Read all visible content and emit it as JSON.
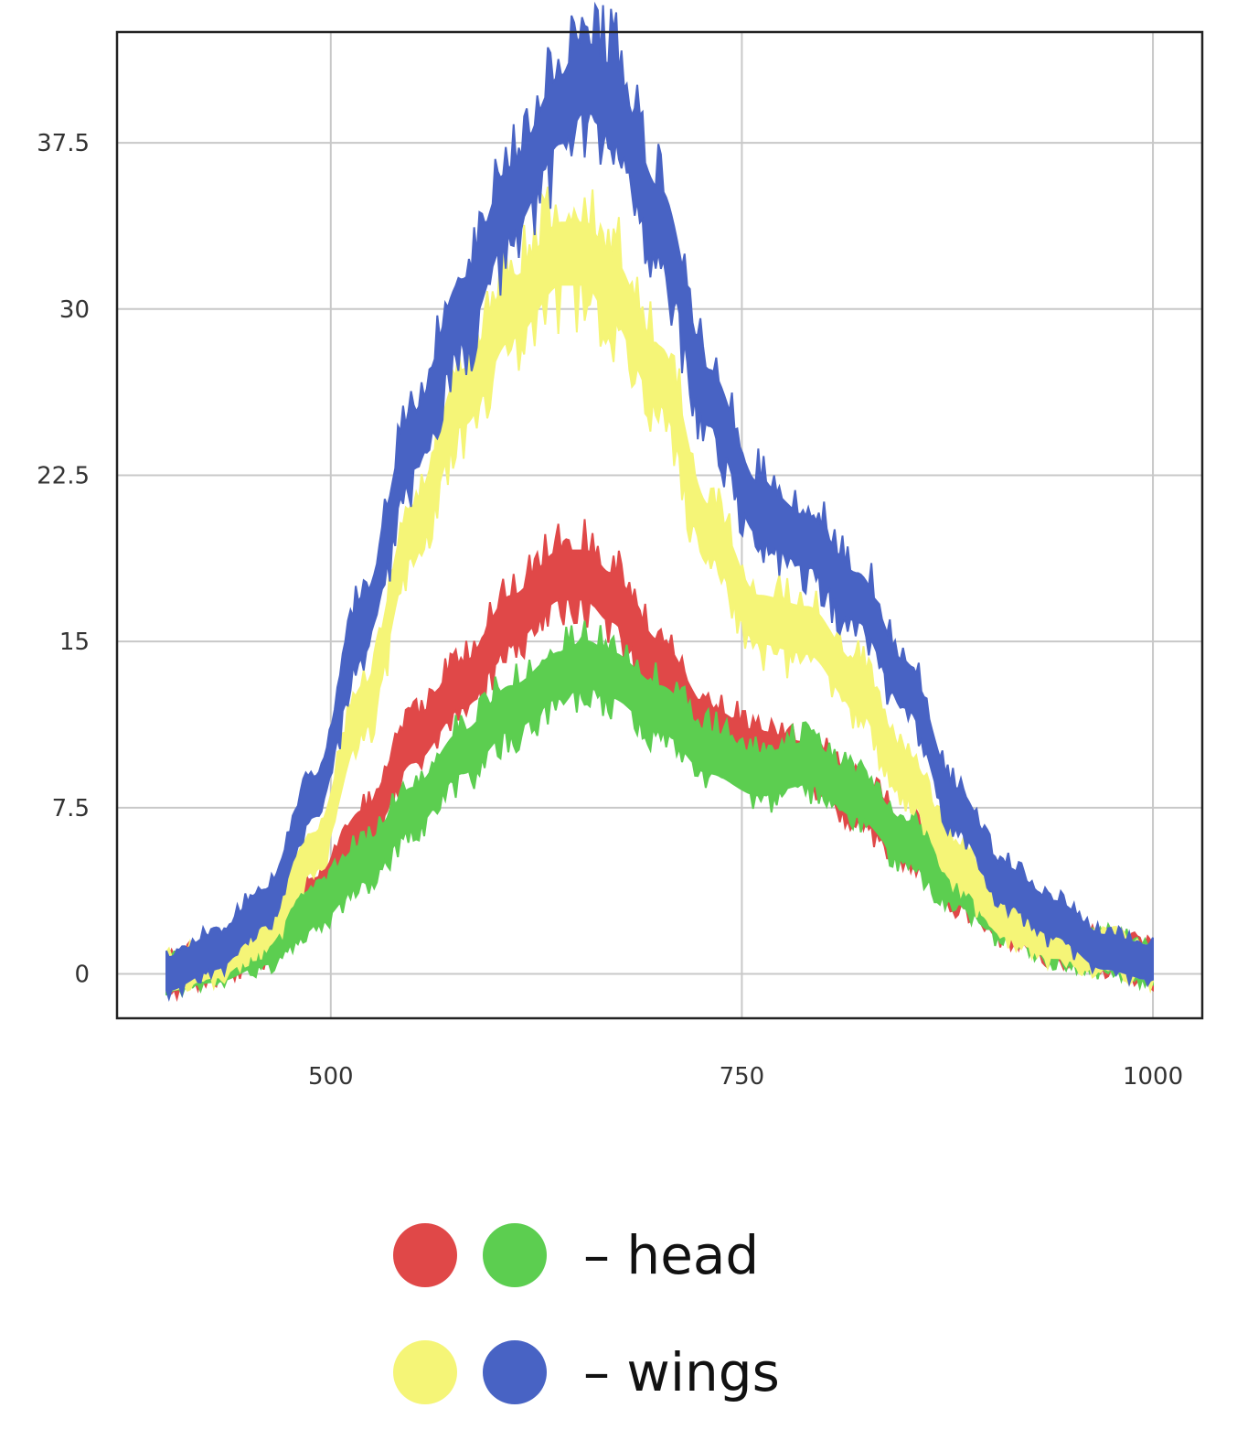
{
  "chart_data": {
    "type": "line",
    "title": "",
    "xlabel": "",
    "ylabel": "",
    "xlim": [
      370,
      1030
    ],
    "ylim": [
      -2,
      42.5
    ],
    "x_ticks": [
      500,
      750,
      1000
    ],
    "x_tick_labels": [
      "500",
      "750",
      "1000"
    ],
    "y_ticks": [
      0,
      7.5,
      15,
      22.5,
      30,
      37.5
    ],
    "y_tick_labels": [
      "0",
      "7.5",
      "15",
      "22.5",
      "30",
      "37.5"
    ],
    "grid": true,
    "legend_position": "bottom-center",
    "x": [
      400,
      430,
      460,
      490,
      520,
      550,
      580,
      610,
      640,
      655,
      670,
      700,
      730,
      760,
      790,
      820,
      850,
      880,
      910,
      940,
      970,
      1000
    ],
    "series": [
      {
        "color": "#e04848",
        "values": [
          0,
          0.6,
          1.5,
          3.5,
          6.5,
          10.5,
          13,
          16,
          18,
          18,
          17,
          14,
          11,
          10,
          9.5,
          8,
          6,
          4,
          2.5,
          1.5,
          1,
          0.5
        ]
      },
      {
        "color": "#5cce50",
        "values": [
          0,
          0.4,
          1.2,
          3,
          5,
          7.5,
          10,
          12,
          13.5,
          14,
          13.5,
          12,
          10,
          9,
          9.5,
          8,
          6,
          4,
          2.5,
          1.5,
          1,
          0.5
        ]
      },
      {
        "color": "#f5f577",
        "values": [
          0,
          0.6,
          2,
          5.5,
          12,
          20,
          26,
          30,
          32.5,
          32.5,
          31,
          27,
          20,
          16,
          15.5,
          13,
          9,
          5,
          2.5,
          1.5,
          1,
          0.5
        ]
      },
      {
        "color": "#4863c4",
        "values": [
          0,
          1,
          3,
          8,
          16,
          24,
          30,
          35,
          39,
          40.5,
          39.5,
          34,
          26,
          21,
          19.5,
          17,
          13,
          7.5,
          4,
          2.5,
          1,
          0.5
        ]
      }
    ],
    "legend": [
      {
        "colors": [
          "#e04848",
          "#5cce50"
        ],
        "label": "– head"
      },
      {
        "colors": [
          "#f5f577",
          "#4863c4"
        ],
        "label": "– wings"
      }
    ]
  }
}
